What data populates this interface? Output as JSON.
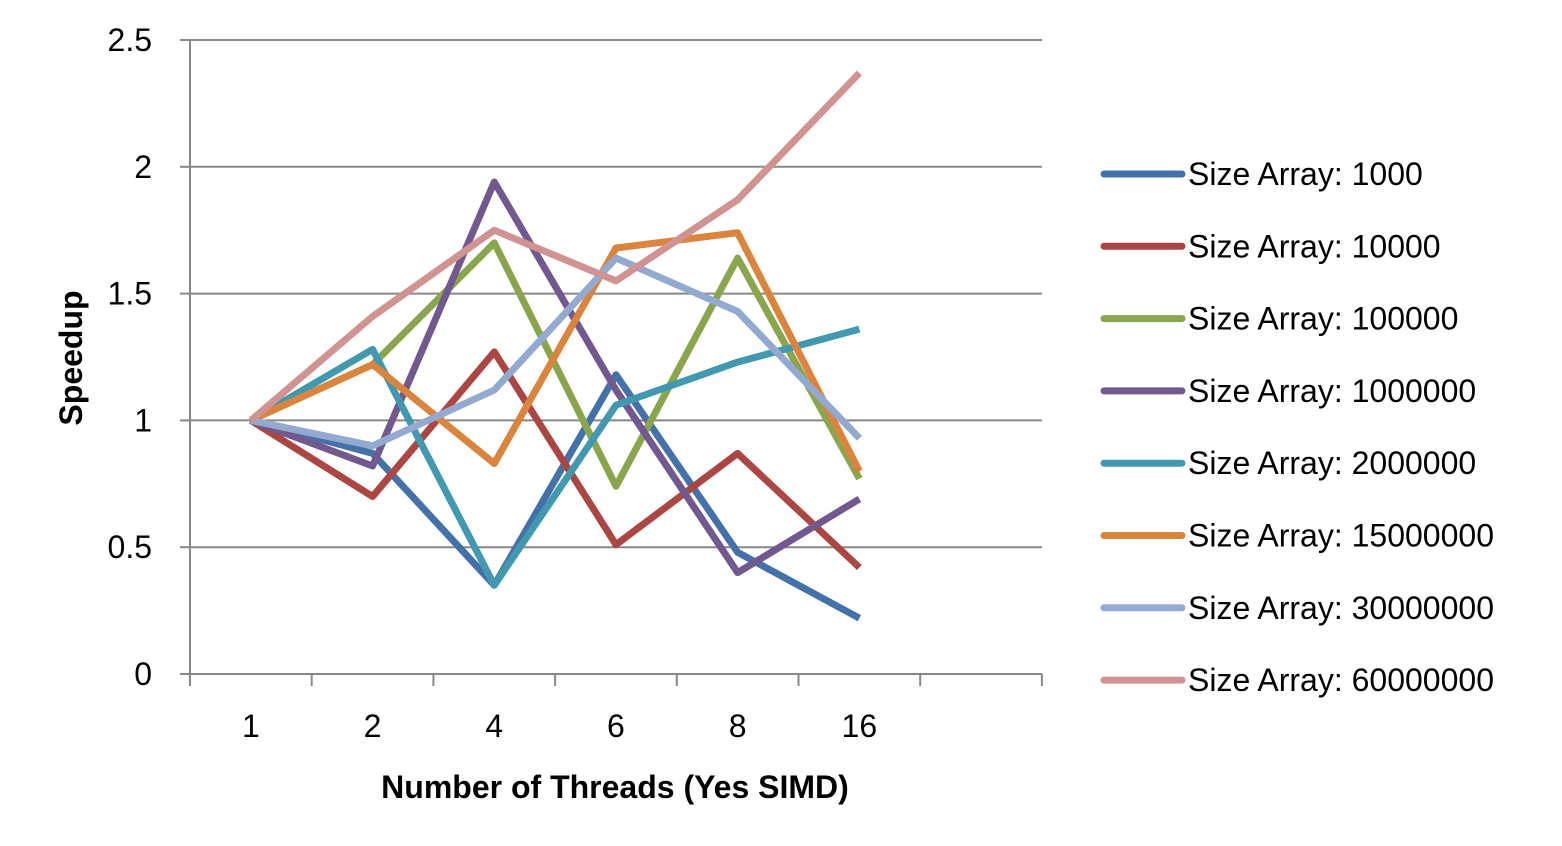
{
  "chart_data": {
    "type": "line",
    "xlabel": "Number of Threads (Yes SIMD)",
    "ylabel": "Speedup",
    "categories": [
      "1",
      "2",
      "4",
      "6",
      "8",
      "16"
    ],
    "ylim": [
      0,
      2.5
    ],
    "yticks": [
      "0",
      "0.5",
      "1",
      "1.5",
      "2",
      "2.5"
    ],
    "grid": "horizontal",
    "legend_position": "right",
    "series": [
      {
        "name": "Size Array: 1000",
        "color": "#4472A8",
        "values": [
          1.0,
          0.87,
          0.35,
          1.18,
          0.48,
          0.22
        ]
      },
      {
        "name": "Size Array: 10000",
        "color": "#AA4643",
        "values": [
          1.0,
          0.7,
          1.27,
          0.51,
          0.87,
          0.42
        ]
      },
      {
        "name": "Size Array: 100000",
        "color": "#89A54E",
        "values": [
          1.0,
          1.22,
          1.7,
          0.74,
          1.64,
          0.77
        ]
      },
      {
        "name": "Size Array: 1000000",
        "color": "#71588F",
        "values": [
          1.0,
          0.82,
          1.94,
          1.12,
          0.4,
          0.69
        ]
      },
      {
        "name": "Size Array: 2000000",
        "color": "#4198AF",
        "values": [
          1.0,
          1.28,
          0.35,
          1.06,
          1.23,
          1.36
        ]
      },
      {
        "name": "Size Array: 15000000",
        "color": "#DB843D",
        "values": [
          1.0,
          1.22,
          0.83,
          1.68,
          1.74,
          0.8
        ]
      },
      {
        "name": "Size Array: 30000000",
        "color": "#93A9CF",
        "values": [
          1.0,
          0.9,
          1.12,
          1.64,
          1.43,
          0.93
        ]
      },
      {
        "name": "Size Array: 60000000",
        "color": "#D19392",
        "values": [
          1.0,
          1.41,
          1.75,
          1.55,
          1.87,
          2.37
        ]
      }
    ]
  }
}
